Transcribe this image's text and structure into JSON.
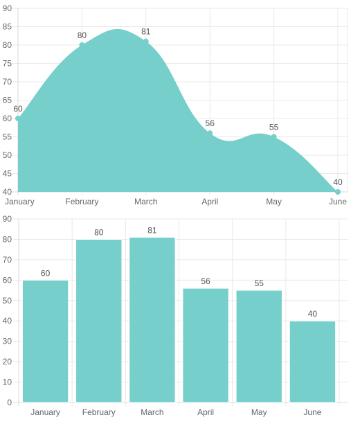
{
  "chart_data": [
    {
      "type": "area",
      "categories": [
        "January",
        "February",
        "March",
        "April",
        "May",
        "June"
      ],
      "values": [
        60,
        80,
        81,
        56,
        55,
        40
      ],
      "ylim": [
        40,
        90
      ],
      "yticks": [
        40,
        45,
        50,
        55,
        60,
        65,
        70,
        75,
        80,
        85,
        90
      ],
      "data_labels": [
        "60",
        "80",
        "81",
        "56",
        "55",
        "40"
      ],
      "grid": true,
      "smooth": true,
      "color": "#77cfcc"
    },
    {
      "type": "bar",
      "categories": [
        "January",
        "February",
        "March",
        "April",
        "May",
        "June"
      ],
      "values": [
        60,
        80,
        81,
        56,
        55,
        40
      ],
      "ylim": [
        0,
        90
      ],
      "yticks": [
        0,
        10,
        20,
        30,
        40,
        50,
        60,
        70,
        80,
        90
      ],
      "data_labels": [
        "60",
        "80",
        "81",
        "56",
        "55",
        "40"
      ],
      "grid": true,
      "color": "#77cfcc"
    }
  ]
}
